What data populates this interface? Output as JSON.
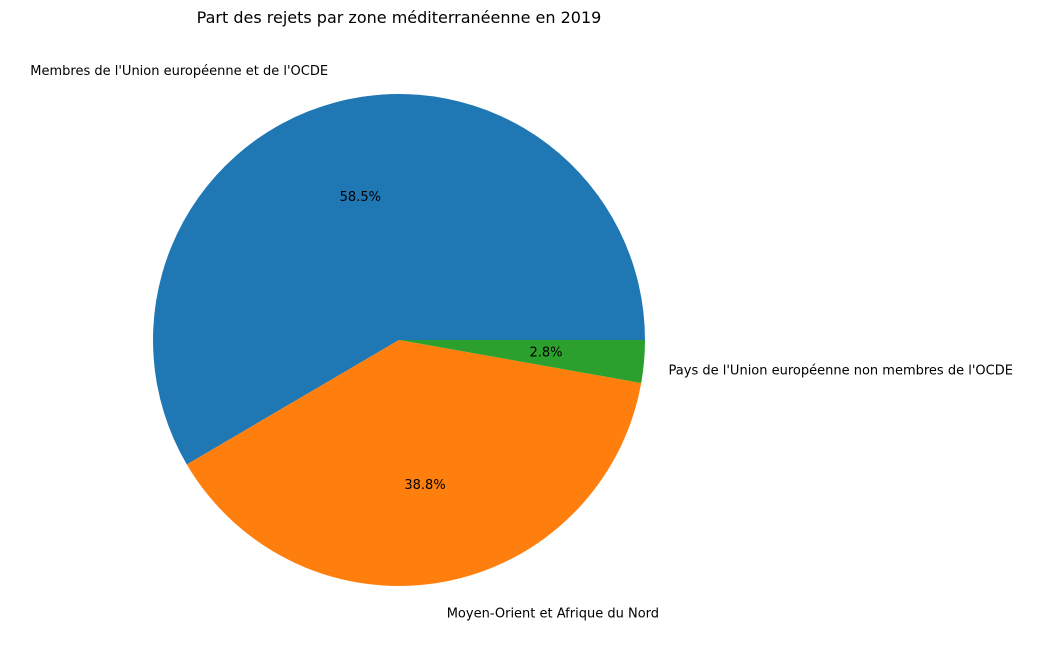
{
  "chart_data": {
    "type": "pie",
    "title": "Part des rejets par zone méditerranéenne en 2019",
    "slices": [
      {
        "label": "Membres de l'Union européenne et de l'OCDE",
        "value": 58.5,
        "pct_label": "58.5%",
        "color": "#1f77b4"
      },
      {
        "label": "Moyen-Orient et Afrique du Nord",
        "value": 38.8,
        "pct_label": "38.8%",
        "color": "#ff7f0e"
      },
      {
        "label": "Pays de l'Union européenne non membres de l'OCDE",
        "value": 2.8,
        "pct_label": "2.8%",
        "color": "#2ca02c"
      }
    ],
    "start_angle_deg": 0,
    "direction": "counterclockwise"
  }
}
